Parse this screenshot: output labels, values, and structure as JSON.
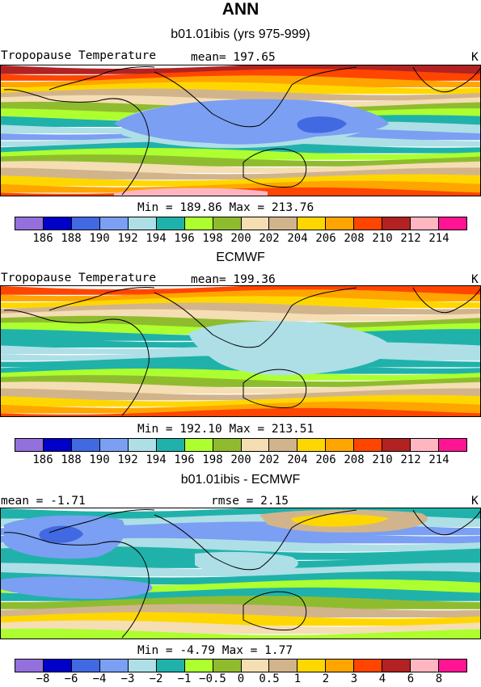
{
  "figure": {
    "title": "ANN"
  },
  "chart_data": [
    {
      "type": "heatmap",
      "title": "b01.01ibis (yrs 975-999)",
      "field_label": "Tropopause Temperature",
      "units": "K",
      "stat_left": "mean= 197.65",
      "minmax": "Min = 189.86 Max = 213.76",
      "min": 189.86,
      "max": 213.76,
      "mean": 197.65,
      "colorbar_levels": [
        "186",
        "188",
        "190",
        "192",
        "194",
        "196",
        "198",
        "200",
        "202",
        "204",
        "206",
        "208",
        "210",
        "212",
        "214"
      ],
      "colorbar_colors": [
        "#9370db",
        "#0000c8",
        "#4169e1",
        "#7b9ff2",
        "#aedfe6",
        "#20b2aa",
        "#adff2f",
        "#8fbc2f",
        "#f5deb3",
        "#d2b48c",
        "#ffd700",
        "#ffa500",
        "#ff4500",
        "#b22222",
        "#ffb6c1",
        "#ff1493"
      ],
      "bands_north_to_south": [
        {
          "value": 213,
          "color_index": 13
        },
        {
          "value": 211,
          "color_index": 12
        },
        {
          "value": 209,
          "color_index": 11
        },
        {
          "value": 207,
          "color_index": 10
        },
        {
          "value": 205,
          "color_index": 9
        },
        {
          "value": 203,
          "color_index": 8
        },
        {
          "value": 201,
          "color_index": 7
        },
        {
          "value": 199,
          "color_index": 6
        },
        {
          "value": 197,
          "color_index": 5
        },
        {
          "value": 195,
          "color_index": 4
        },
        {
          "value": 193,
          "color_index": 3
        },
        {
          "value": 195,
          "color_index": 4
        },
        {
          "value": 197,
          "color_index": 5
        },
        {
          "value": 199,
          "color_index": 6
        },
        {
          "value": 201,
          "color_index": 7
        },
        {
          "value": 203,
          "color_index": 8
        },
        {
          "value": 205,
          "color_index": 9
        },
        {
          "value": 207,
          "color_index": 10
        },
        {
          "value": 209,
          "color_index": 11
        },
        {
          "value": 211,
          "color_index": 12
        }
      ]
    },
    {
      "type": "heatmap",
      "title": "ECMWF",
      "field_label": "Tropopause Temperature",
      "units": "K",
      "stat_left": "mean= 199.36",
      "minmax": "Min = 192.10 Max = 213.51",
      "min": 192.1,
      "max": 213.51,
      "mean": 199.36,
      "colorbar_levels": [
        "186",
        "188",
        "190",
        "192",
        "194",
        "196",
        "198",
        "200",
        "202",
        "204",
        "206",
        "208",
        "210",
        "212",
        "214"
      ],
      "colorbar_colors": [
        "#9370db",
        "#0000c8",
        "#4169e1",
        "#7b9ff2",
        "#aedfe6",
        "#20b2aa",
        "#adff2f",
        "#8fbc2f",
        "#f5deb3",
        "#d2b48c",
        "#ffd700",
        "#ffa500",
        "#ff4500",
        "#b22222",
        "#ffb6c1",
        "#ff1493"
      ],
      "bands_north_to_south": [
        {
          "value": 211,
          "color_index": 12
        },
        {
          "value": 209,
          "color_index": 11
        },
        {
          "value": 207,
          "color_index": 10
        },
        {
          "value": 205,
          "color_index": 9
        },
        {
          "value": 203,
          "color_index": 8
        },
        {
          "value": 201,
          "color_index": 7
        },
        {
          "value": 199,
          "color_index": 6
        },
        {
          "value": 197,
          "color_index": 5
        },
        {
          "value": 197,
          "color_index": 5
        },
        {
          "value": 195,
          "color_index": 4
        },
        {
          "value": 195,
          "color_index": 4
        },
        {
          "value": 197,
          "color_index": 5
        },
        {
          "value": 197,
          "color_index": 5
        },
        {
          "value": 199,
          "color_index": 6
        },
        {
          "value": 201,
          "color_index": 7
        },
        {
          "value": 203,
          "color_index": 8
        },
        {
          "value": 205,
          "color_index": 9
        },
        {
          "value": 207,
          "color_index": 10
        },
        {
          "value": 209,
          "color_index": 11
        },
        {
          "value": 211,
          "color_index": 12
        }
      ]
    },
    {
      "type": "heatmap",
      "title": "b01.01ibis - ECMWF",
      "units": "K",
      "stat_left": "mean = -1.71",
      "stat_right": "rmse = 2.15",
      "minmax": "Min = -4.79 Max = 1.77",
      "min": -4.79,
      "max": 1.77,
      "mean": -1.71,
      "rmse": 2.15,
      "colorbar_levels": [
        "−8",
        "−6",
        "−4",
        "−3",
        "−2",
        "−1",
        "−0.5",
        "0",
        "0.5",
        "1",
        "2",
        "3",
        "4",
        "6",
        "8"
      ],
      "colorbar_colors": [
        "#9370db",
        "#0000c8",
        "#4169e1",
        "#7b9ff2",
        "#aedfe6",
        "#20b2aa",
        "#adff2f",
        "#8fbc2f",
        "#f5deb3",
        "#d2b48c",
        "#ffd700",
        "#ffa500",
        "#ff4500",
        "#b22222",
        "#ffb6c1",
        "#ff1493"
      ],
      "bands_north_to_south": [
        {
          "value": -1.5,
          "color_index": 5
        },
        {
          "value": -2.5,
          "color_index": 4
        },
        {
          "value": -3.5,
          "color_index": 3
        },
        {
          "value": -3.5,
          "color_index": 3
        },
        {
          "value": -2.5,
          "color_index": 4
        },
        {
          "value": -1.5,
          "color_index": 5
        },
        {
          "value": -1.5,
          "color_index": 5
        },
        {
          "value": -2.5,
          "color_index": 4
        },
        {
          "value": -1.5,
          "color_index": 5
        },
        {
          "value": -0.75,
          "color_index": 6
        },
        {
          "value": -1.5,
          "color_index": 5
        },
        {
          "value": -0.25,
          "color_index": 7
        },
        {
          "value": 0.75,
          "color_index": 9
        },
        {
          "value": 1.5,
          "color_index": 10
        },
        {
          "value": 0.25,
          "color_index": 8
        },
        {
          "value": -0.75,
          "color_index": 6
        }
      ]
    }
  ]
}
